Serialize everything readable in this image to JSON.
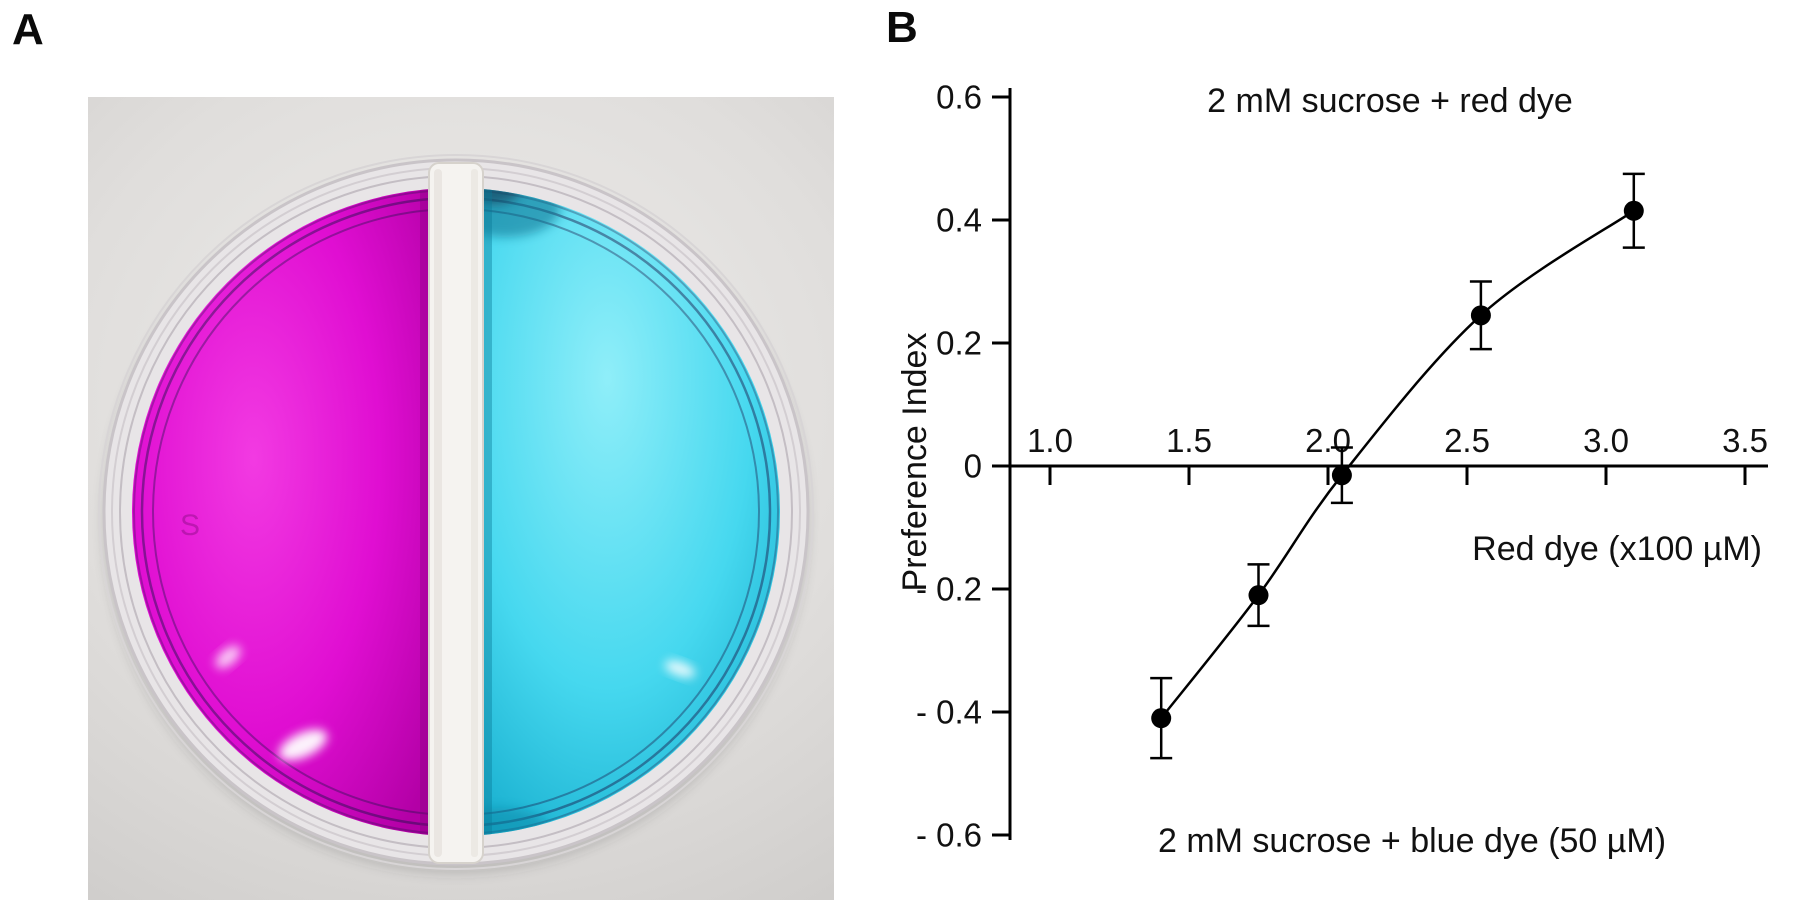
{
  "panels": {
    "a": {
      "label": "A",
      "dish_marking": "S"
    },
    "b": {
      "label": "B"
    }
  },
  "colors": {
    "magenta_light": "#f23ae2",
    "magenta": "#e00ed2",
    "magenta_dark": "#b300a6",
    "cyan_light": "#8feef9",
    "cyan": "#46d8ef",
    "cyan_dark": "#0ea6c8",
    "line": "#000000"
  },
  "chart_data": {
    "type": "line",
    "error_bars": true,
    "title": "2 mM sucrose + red dye",
    "bottom_label": "2 mM sucrose + blue dye (50 µM)",
    "xlabel": "Red dye (x100 µM)",
    "ylabel": "Preference Index",
    "xlim": [
      0.93,
      3.6
    ],
    "ylim": [
      -0.6,
      0.6
    ],
    "grid": false,
    "x_ticks": [
      1.0,
      1.5,
      2.0,
      2.5,
      3.0,
      3.5
    ],
    "x_tick_labels": [
      "1.0",
      "1.5",
      "2.0",
      "2.5",
      "3.0",
      "3.5"
    ],
    "y_ticks": [
      0.6,
      0.4,
      0.2,
      0,
      -0.2,
      -0.4,
      -0.6
    ],
    "y_tick_labels": [
      "0.6",
      "0.4",
      "0.2",
      "0",
      "- 0.2",
      "- 0.4",
      "- 0.6"
    ],
    "series": [
      {
        "name": "preference-index",
        "x": [
          1.4,
          1.75,
          2.05,
          2.55,
          3.1
        ],
        "y": [
          -0.41,
          -0.21,
          -0.015,
          0.245,
          0.415
        ],
        "yerr": [
          0.065,
          0.05,
          0.045,
          0.055,
          0.06
        ]
      }
    ]
  }
}
